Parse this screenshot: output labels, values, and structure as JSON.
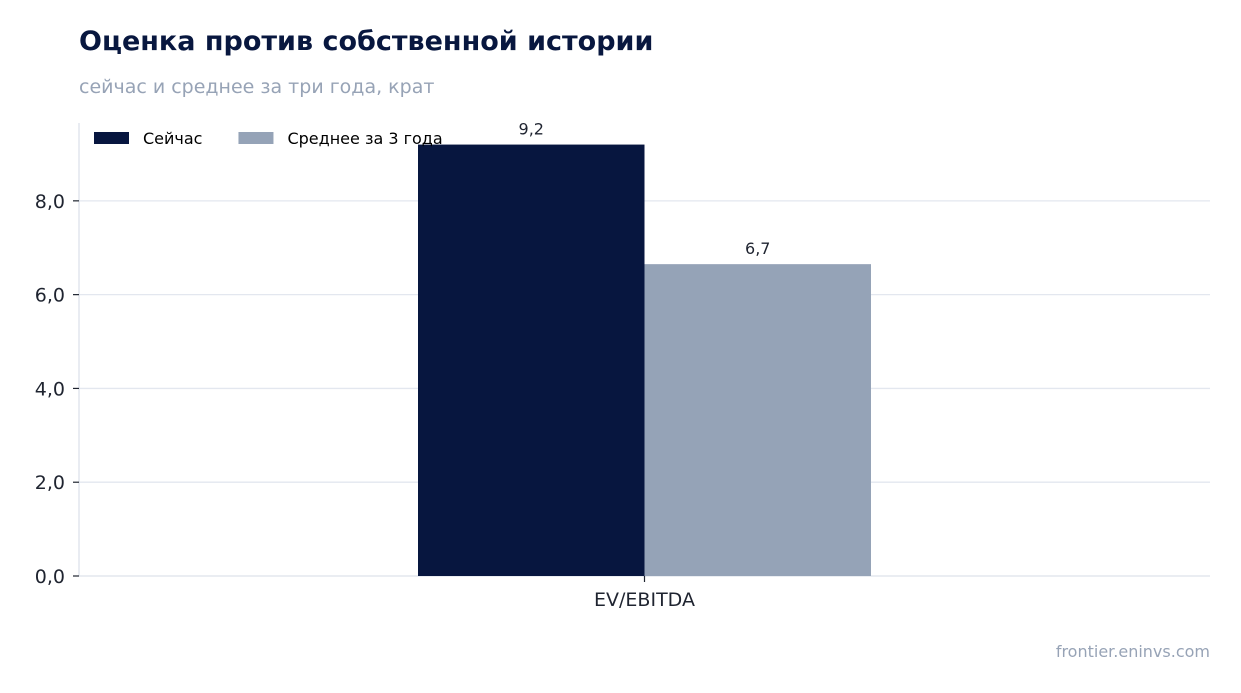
{
  "header": {
    "title": "Оценка против собственной истории",
    "subtitle": "сейчас и среднее за три года, крат"
  },
  "footer": {
    "source": "frontier.eninvs.com"
  },
  "colors": {
    "series_now": "#07163f",
    "series_avg": "#95a3b7",
    "grid": "#e3e7ef",
    "axis": "#dde2ea"
  },
  "chart_data": {
    "type": "bar",
    "categories": [
      "EV/EBITDA"
    ],
    "series": [
      {
        "name": "Сейчас",
        "values": [
          9.2
        ],
        "labels": [
          "9,2"
        ],
        "color": "#07163f"
      },
      {
        "name": "Среднее за 3 года",
        "values": [
          6.65
        ],
        "labels": [
          "6,7"
        ],
        "color": "#95a3b7"
      }
    ],
    "yticks": [
      0,
      2,
      4,
      6,
      8
    ],
    "ytick_labels": [
      "0,0",
      "2,0",
      "4,0",
      "6,0",
      "8,0"
    ],
    "ylim": [
      0,
      9.66
    ],
    "grid": true,
    "legend_position": "top-left"
  }
}
